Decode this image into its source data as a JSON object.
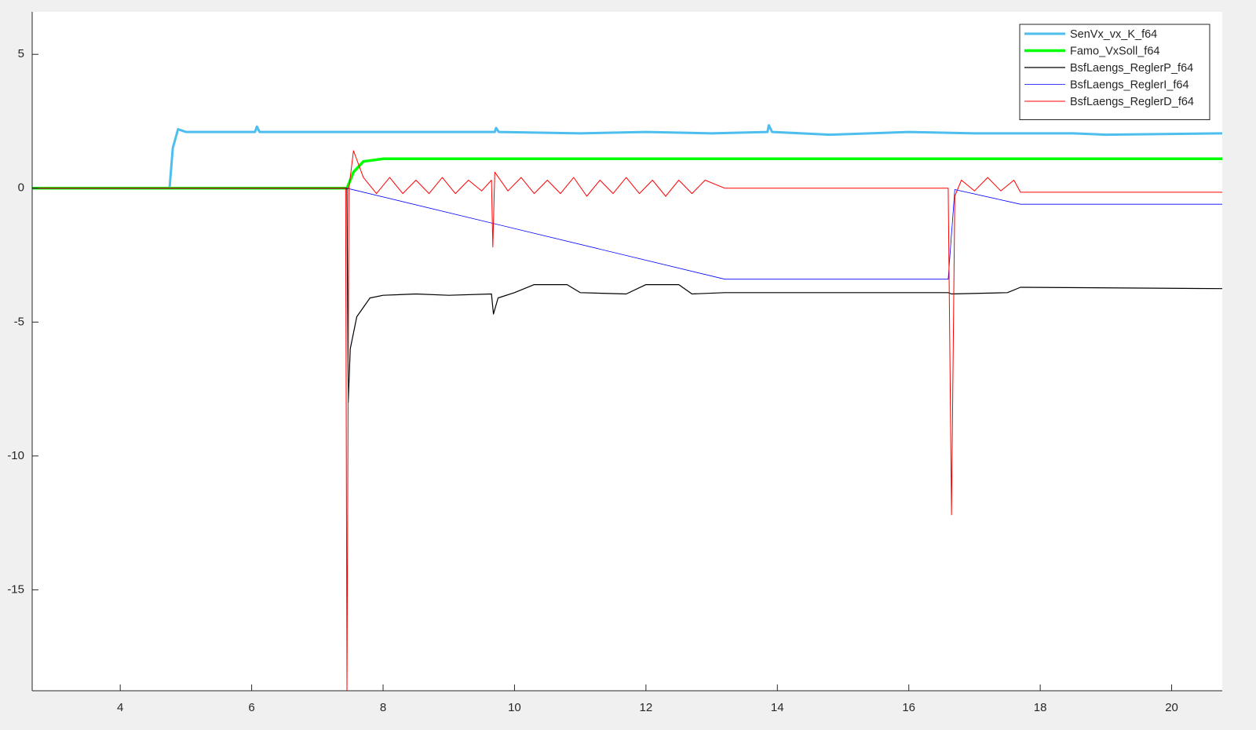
{
  "chart_data": {
    "type": "line",
    "xlim": [
      2.66,
      20.77
    ],
    "ylim": [
      -18.77,
      6.59
    ],
    "xticks": [
      4,
      6,
      8,
      10,
      12,
      14,
      16,
      18,
      20
    ],
    "yticks": [
      5,
      0,
      -5,
      -10,
      -15
    ],
    "legend": "upper right",
    "series": [
      {
        "name": "SenVx_vx_K_f64",
        "color": "#4DBEEE",
        "width": 3,
        "x": [
          2.66,
          4.75,
          4.8,
          4.88,
          5.0,
          6.05,
          6.08,
          6.12,
          9.7,
          9.72,
          9.76,
          11,
          12,
          13,
          13.85,
          13.87,
          13.92,
          14.8,
          16,
          17,
          18.5,
          19,
          20.77
        ],
        "values": [
          0,
          0,
          1.5,
          2.2,
          2.1,
          2.1,
          2.3,
          2.1,
          2.1,
          2.25,
          2.1,
          2.05,
          2.1,
          2.05,
          2.1,
          2.35,
          2.1,
          2.0,
          2.1,
          2.05,
          2.05,
          2.0,
          2.05
        ]
      },
      {
        "name": "Famo_VxSoll_f64",
        "color": "#00FF00",
        "width": 3.5,
        "x": [
          2.66,
          7.45,
          7.55,
          7.7,
          8,
          20.77
        ],
        "values": [
          0,
          0,
          0.6,
          1.0,
          1.1,
          1.1
        ]
      },
      {
        "name": "BsfLaengs_ReglerP_f64",
        "color": "#000000",
        "width": 1.2,
        "x": [
          2.66,
          7.45,
          7.47,
          7.5,
          7.6,
          7.8,
          8,
          8.5,
          9,
          9.65,
          9.68,
          9.75,
          10,
          10.3,
          10.8,
          11,
          11.7,
          12,
          12.5,
          12.7,
          13.2,
          16.6,
          16.65,
          17.5,
          17.7,
          20.77
        ],
        "values": [
          0,
          0,
          -8,
          -6,
          -4.8,
          -4.1,
          -4.0,
          -3.95,
          -4.0,
          -3.95,
          -4.7,
          -4.1,
          -3.9,
          -3.6,
          -3.6,
          -3.9,
          -3.95,
          -3.6,
          -3.6,
          -3.95,
          -3.9,
          -3.9,
          -3.95,
          -3.9,
          -3.7,
          -3.75
        ]
      },
      {
        "name": "BsfLaengs_ReglerI_f64",
        "color": "#0000FF",
        "width": 0.8,
        "x": [
          2.66,
          7.45,
          13.2,
          16.6,
          16.7,
          17.7,
          20.77
        ],
        "values": [
          0,
          0,
          -3.4,
          -3.4,
          -0.05,
          -0.6,
          -0.6
        ]
      },
      {
        "name": "BsfLaengs_ReglerD_f64",
        "color": "#FF0000",
        "width": 1,
        "x": [
          2.66,
          7.43,
          7.45,
          7.48,
          7.55,
          7.7,
          7.9,
          8.1,
          8.3,
          8.5,
          8.7,
          8.9,
          9.1,
          9.3,
          9.5,
          9.65,
          9.67,
          9.7,
          9.9,
          10.1,
          10.3,
          10.5,
          10.7,
          10.9,
          11.1,
          11.3,
          11.5,
          11.7,
          11.9,
          12.1,
          12.3,
          12.5,
          12.7,
          12.9,
          13.2,
          16.6,
          16.65,
          16.7,
          16.8,
          17.0,
          17.2,
          17.4,
          17.6,
          17.7,
          20.77
        ],
        "values": [
          0,
          0,
          -18.77,
          0,
          1.4,
          0.4,
          -0.2,
          0.4,
          -0.2,
          0.3,
          -0.2,
          0.4,
          -0.2,
          0.3,
          -0.1,
          0.3,
          -2.2,
          0.6,
          -0.1,
          0.4,
          -0.2,
          0.3,
          -0.2,
          0.4,
          -0.3,
          0.3,
          -0.2,
          0.4,
          -0.2,
          0.3,
          -0.3,
          0.3,
          -0.2,
          0.3,
          0,
          0,
          -12.2,
          -0.3,
          0.3,
          -0.1,
          0.4,
          -0.1,
          0.3,
          -0.15,
          -0.15
        ]
      }
    ]
  }
}
